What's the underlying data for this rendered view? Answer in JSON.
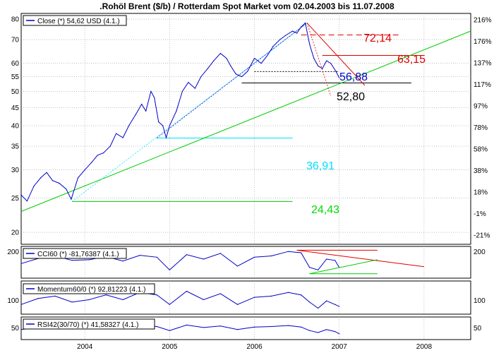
{
  "chart_data": {
    "type": "line",
    "title": ".Rohöl Brent ($/b) / Rotterdam Spot Market vom 02.04.2003 bis 11.07.2008",
    "main": {
      "legend": "Close (*) 54,62 USD (4.1.)",
      "yscale": "log",
      "ylim": [
        18.5,
        83
      ],
      "y_ticks": [
        20,
        25,
        30,
        35,
        40,
        45,
        50,
        55,
        60,
        70,
        80
      ],
      "y_ticks_right": [
        "216%",
        "176%",
        "137%",
        "117%",
        "97%",
        "78%",
        "58%",
        "38%",
        "18%",
        "-1%",
        "-21%"
      ],
      "series": [
        {
          "color": "#0000c8",
          "x": [
            2003.25,
            2003.32,
            2003.4,
            2003.48,
            2003.55,
            2003.62,
            2003.7,
            2003.78,
            2003.84,
            2003.92,
            2004.0,
            2004.08,
            2004.15,
            2004.22,
            2004.3,
            2004.37,
            2004.45,
            2004.52,
            2004.6,
            2004.67,
            2004.72,
            2004.78,
            2004.82,
            2004.87,
            2004.92,
            2004.96,
            2005.0,
            2005.08,
            2005.15,
            2005.22,
            2005.3,
            2005.37,
            2005.45,
            2005.52,
            2005.6,
            2005.67,
            2005.72,
            2005.78,
            2005.85,
            2005.92,
            2006.0,
            2006.08,
            2006.15,
            2006.22,
            2006.3,
            2006.37,
            2006.45,
            2006.5,
            2006.55,
            2006.6,
            2006.65,
            2006.7,
            2006.75,
            2006.8,
            2006.85,
            2006.9,
            2006.96,
            2007.0
          ],
          "y": [
            25.5,
            24.5,
            27,
            28.5,
            29.5,
            28,
            27.5,
            26.5,
            24.8,
            28.5,
            30,
            31.5,
            33,
            33.5,
            35,
            38,
            37,
            40,
            43,
            46,
            44,
            50,
            48,
            41,
            40,
            37,
            40,
            44,
            50,
            53,
            51,
            55,
            58,
            61,
            64,
            62,
            59,
            56,
            55,
            57,
            62,
            60,
            63,
            67,
            70,
            72,
            74,
            73,
            76,
            78,
            68,
            62,
            59,
            58,
            61,
            60,
            57,
            54.62
          ]
        }
      ],
      "annotations": [
        {
          "value": "72,14",
          "color": "#e00000"
        },
        {
          "value": "63,15",
          "color": "#e00000"
        },
        {
          "value": "56,88",
          "color": "#0000c8"
        },
        {
          "value": "52,80",
          "color": "#000000"
        },
        {
          "value": "36,91",
          "color": "#00e0ff"
        },
        {
          "value": "24,43",
          "color": "#00dd00"
        }
      ],
      "trendline": {
        "color": "#00cc00",
        "from": [
          2003.25,
          22.9
        ],
        "to": [
          2008.55,
          74
        ]
      }
    },
    "cci": {
      "legend": "CCI60 (*) -81,76387 (4.1.)",
      "ylim": [
        -250,
        250
      ],
      "tick_left": "200",
      "tick_right": "200",
      "x": [
        2003.25,
        2003.45,
        2003.65,
        2003.85,
        2004.05,
        2004.25,
        2004.45,
        2004.65,
        2004.85,
        2005.0,
        2005.2,
        2005.4,
        2005.6,
        2005.8,
        2006.0,
        2006.2,
        2006.4,
        2006.55,
        2006.65,
        2006.75,
        2006.85,
        2006.95,
        2007.0
      ],
      "y": [
        -20,
        60,
        100,
        30,
        40,
        90,
        20,
        110,
        80,
        -120,
        120,
        50,
        140,
        -60,
        80,
        100,
        170,
        150,
        -80,
        -120,
        50,
        30,
        -81.76
      ]
    },
    "momentum": {
      "legend": "Momentum60/0 (*) 92,81223 (4.1.)",
      "ylim": [
        80,
        135
      ],
      "tick_left": "100",
      "tick_right": "100",
      "x": [
        2003.25,
        2003.45,
        2003.65,
        2003.85,
        2004.05,
        2004.25,
        2004.45,
        2004.65,
        2004.85,
        2005.0,
        2005.2,
        2005.4,
        2005.6,
        2005.8,
        2006.0,
        2006.2,
        2006.4,
        2006.55,
        2006.65,
        2006.75,
        2006.85,
        2006.95,
        2007.0
      ],
      "y": [
        96,
        106,
        110,
        100,
        104,
        112,
        104,
        116,
        112,
        96,
        118,
        104,
        114,
        96,
        108,
        110,
        116,
        112,
        100,
        90,
        102,
        96,
        92.81
      ]
    },
    "rsi": {
      "legend": "RSI42(30/70) (*) 41,58327 (4.1.)",
      "ylim": [
        30,
        75
      ],
      "tick_left": "50",
      "tick_right": "50",
      "x": [
        2003.25,
        2003.45,
        2003.65,
        2003.85,
        2004.05,
        2004.25,
        2004.45,
        2004.65,
        2004.85,
        2005.0,
        2005.2,
        2005.4,
        2005.6,
        2005.8,
        2006.0,
        2006.2,
        2006.4,
        2006.55,
        2006.65,
        2006.75,
        2006.85,
        2006.95,
        2007.0
      ],
      "y": [
        50,
        54,
        56,
        51,
        54,
        57,
        53,
        58,
        56,
        48,
        59,
        54,
        57,
        50,
        55,
        56,
        58,
        55,
        48,
        44,
        50,
        46,
        41.58
      ]
    },
    "x_axis": {
      "xlim": [
        2003.25,
        2008.55
      ],
      "ticks": [
        2004,
        2005,
        2006,
        2007,
        2008
      ],
      "labels": [
        "2004",
        "2005",
        "2006",
        "2007",
        "2008"
      ]
    }
  }
}
